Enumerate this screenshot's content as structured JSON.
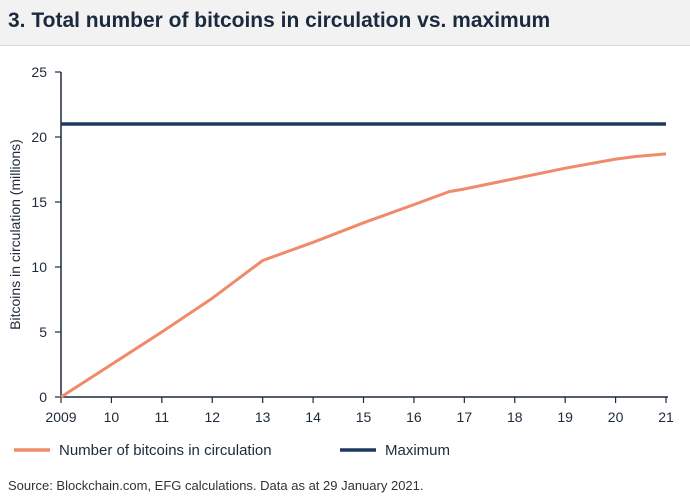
{
  "title": "3. Total number of bitcoins in circulation vs. maximum",
  "source": "Source: Blockchain.com, EFG calculations. Data as at 29 January 2021.",
  "chart_data": {
    "type": "line",
    "title": "3. Total number of bitcoins in circulation vs. maximum",
    "xlabel": "",
    "ylabel": "Bitcoins in circulation (millions)",
    "xlim": [
      2009,
      2021
    ],
    "ylim": [
      0,
      25
    ],
    "x_ticks": [
      2009,
      2010,
      2011,
      2012,
      2013,
      2014,
      2015,
      2016,
      2017,
      2018,
      2019,
      2020,
      2021
    ],
    "x_tick_labels": [
      "2009",
      "10",
      "11",
      "12",
      "13",
      "14",
      "15",
      "16",
      "17",
      "18",
      "19",
      "20",
      "21"
    ],
    "y_ticks": [
      0,
      5,
      10,
      15,
      20,
      25
    ],
    "y_tick_labels": [
      "0",
      "5",
      "10",
      "15",
      "20",
      "25"
    ],
    "grid": false,
    "legend_position": "bottom",
    "series": [
      {
        "name": "Number of bitcoins in circulation",
        "color": "#f08a6b",
        "x": [
          2009,
          2010,
          2011,
          2012,
          2013,
          2014,
          2015,
          2016,
          2016.7,
          2017,
          2018,
          2019,
          2020,
          2020.4,
          2021
        ],
        "values": [
          0,
          2.5,
          5.0,
          7.6,
          10.5,
          11.9,
          13.4,
          14.8,
          15.8,
          16.0,
          16.8,
          17.6,
          18.3,
          18.5,
          18.7
        ]
      },
      {
        "name": "Maximum",
        "color": "#1f3a5f",
        "x": [
          2009,
          2021
        ],
        "values": [
          21,
          21
        ]
      }
    ]
  }
}
